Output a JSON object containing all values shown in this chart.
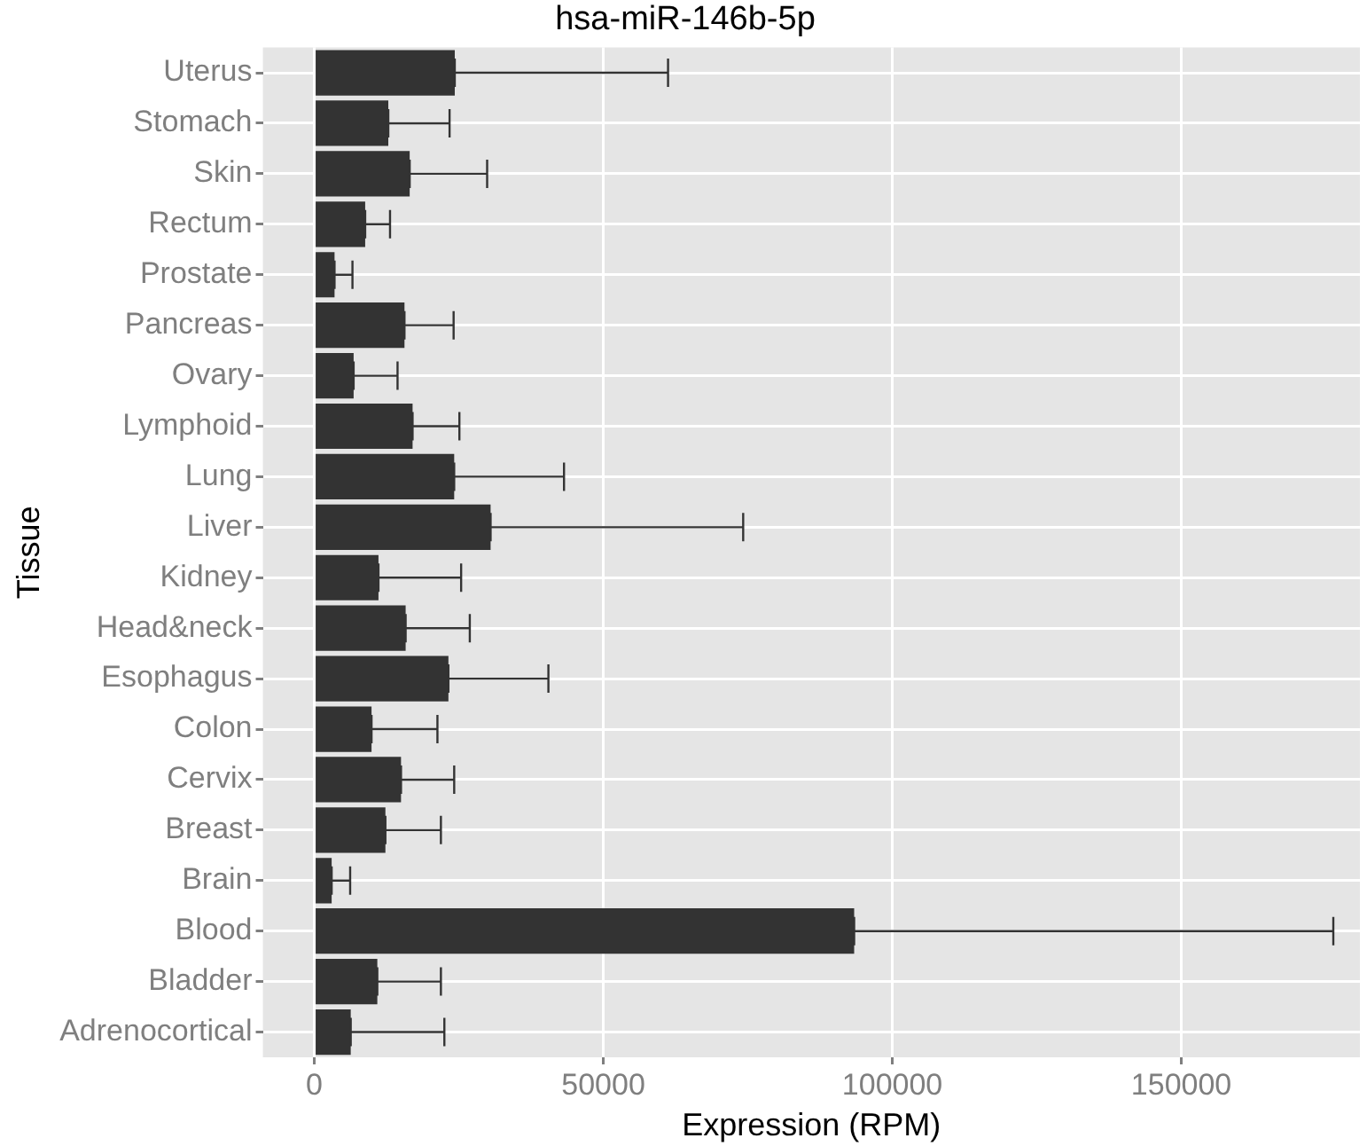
{
  "chart_data": {
    "type": "bar",
    "orientation": "horizontal",
    "title": "hsa-miR-146b-5p",
    "xlabel": "Expression (RPM)",
    "ylabel": "Tissue",
    "categories": [
      "Uterus",
      "Stomach",
      "Skin",
      "Rectum",
      "Prostate",
      "Pancreas",
      "Ovary",
      "Lymphoid",
      "Lung",
      "Liver",
      "Kidney",
      "Head&neck",
      "Esophagus",
      "Colon",
      "Cervix",
      "Breast",
      "Brain",
      "Blood",
      "Bladder",
      "Adrenocortical"
    ],
    "values": [
      24300,
      12800,
      16500,
      8800,
      3500,
      15600,
      6800,
      17000,
      24200,
      30500,
      11100,
      15800,
      23200,
      9900,
      15000,
      12300,
      3000,
      93400,
      10900,
      6300
    ],
    "errors": [
      [
        24300,
        61200
      ],
      [
        12800,
        23400
      ],
      [
        16500,
        29900
      ],
      [
        8800,
        13100
      ],
      [
        3500,
        6600
      ],
      [
        15600,
        24100
      ],
      [
        6800,
        14400
      ],
      [
        17000,
        25100
      ],
      [
        24200,
        43200
      ],
      [
        30500,
        74200
      ],
      [
        11100,
        25400
      ],
      [
        15800,
        26900
      ],
      [
        23200,
        40500
      ],
      [
        9900,
        21300
      ],
      [
        15000,
        24200
      ],
      [
        12300,
        21900
      ],
      [
        3000,
        6200
      ],
      [
        93400,
        176300
      ],
      [
        10900,
        21900
      ],
      [
        6300,
        22500
      ]
    ],
    "color": "#333333",
    "xlim": [
      -8900,
      180900
    ],
    "xticks": [
      0,
      50000,
      100000,
      150000
    ],
    "grid": true,
    "legend": false
  }
}
